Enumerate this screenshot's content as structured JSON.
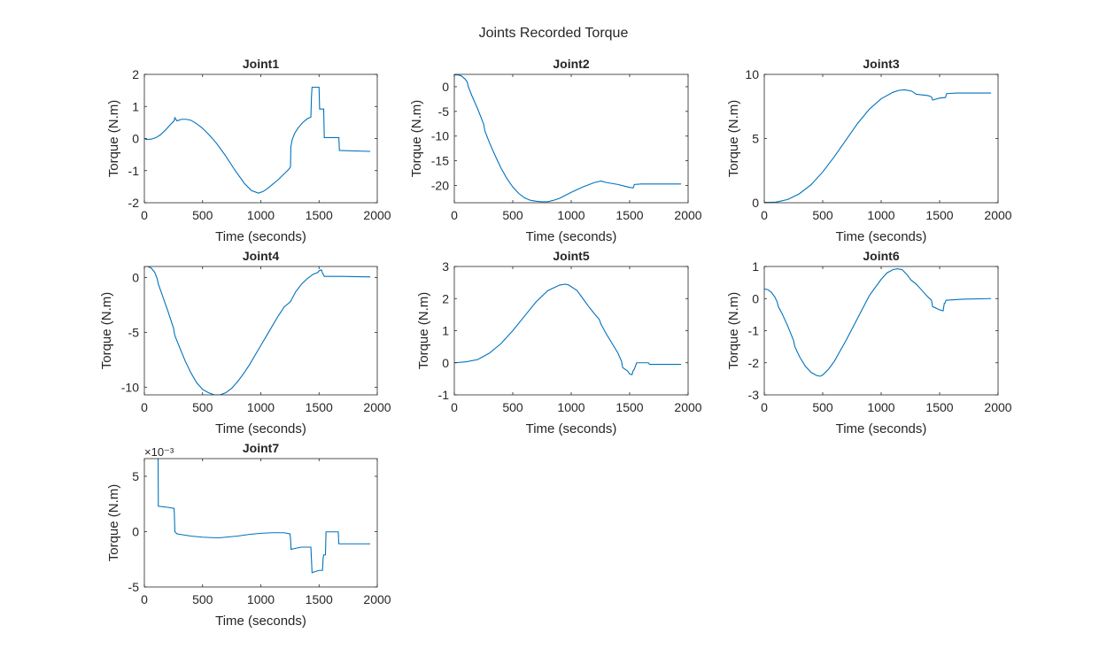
{
  "figure": {
    "title": "Joints Recorded Torque",
    "colors": {
      "line": "#0072BD",
      "axis": "#262626",
      "background": "#ffffff"
    }
  },
  "chart_data": [
    {
      "type": "line",
      "title": "Joint1",
      "xlabel": "Time (seconds)",
      "ylabel": "Torque (N.m)",
      "xlim": [
        0,
        2000
      ],
      "ylim": [
        -2,
        2
      ],
      "xticks": [
        0,
        500,
        1000,
        1500,
        2000
      ],
      "xtick_labels": [
        "0",
        "500",
        "1000",
        "1500",
        "2000"
      ],
      "yticks": [
        -2,
        -1,
        0,
        1,
        2
      ],
      "ytick_labels": [
        "-2",
        "-1",
        "0",
        "1",
        "2"
      ],
      "grid": false,
      "series": [
        {
          "x": [
            0,
            20,
            60,
            100,
            140,
            180,
            220,
            255,
            262,
            280,
            320,
            360,
            400,
            450,
            500,
            560,
            620,
            700,
            780,
            860,
            920,
            980,
            1020,
            1060,
            1100,
            1150,
            1200,
            1240,
            1255,
            1258,
            1270,
            1290,
            1320,
            1360,
            1400,
            1430,
            1435,
            1440,
            1500,
            1505,
            1530,
            1540,
            1545,
            1670,
            1675,
            1940
          ],
          "y": [
            0,
            -0.03,
            -0.02,
            0.03,
            0.12,
            0.26,
            0.42,
            0.55,
            0.65,
            0.55,
            0.6,
            0.6,
            0.57,
            0.46,
            0.32,
            0.1,
            -0.15,
            -0.55,
            -1.0,
            -1.4,
            -1.62,
            -1.7,
            -1.65,
            -1.55,
            -1.43,
            -1.28,
            -1.1,
            -0.96,
            -0.88,
            -0.25,
            -0.03,
            0.16,
            0.33,
            0.5,
            0.62,
            0.67,
            1.3,
            1.6,
            1.6,
            0.92,
            0.92,
            0.92,
            0.03,
            0.03,
            -0.37,
            -0.4
          ]
        }
      ]
    },
    {
      "type": "line",
      "title": "Joint2",
      "xlabel": "Time (seconds)",
      "ylabel": "Torque (N.m)",
      "xlim": [
        0,
        2000
      ],
      "ylim": [
        -23.5,
        2.5
      ],
      "xticks": [
        0,
        500,
        1000,
        1500,
        2000
      ],
      "xtick_labels": [
        "0",
        "500",
        "1000",
        "1500",
        "2000"
      ],
      "yticks": [
        -20,
        -15,
        -10,
        -5,
        0
      ],
      "ytick_labels": [
        "-20",
        "-15",
        "-10",
        "-5",
        "0"
      ],
      "grid": false,
      "series": [
        {
          "x": [
            0,
            30,
            60,
            90,
            110,
            120,
            150,
            200,
            250,
            262,
            300,
            350,
            400,
            450,
            500,
            550,
            600,
            650,
            700,
            750,
            800,
            850,
            900,
            950,
            1000,
            1100,
            1200,
            1255,
            1300,
            1350,
            1400,
            1450,
            1500,
            1530,
            1540,
            1600,
            1700,
            1800,
            1940
          ],
          "y": [
            2.4,
            2.4,
            2.2,
            1.6,
            1.0,
            0,
            -1.8,
            -4.5,
            -7.5,
            -9.0,
            -11.3,
            -14.0,
            -16.5,
            -18.6,
            -20.3,
            -21.6,
            -22.5,
            -23.0,
            -23.2,
            -23.3,
            -23.3,
            -23.0,
            -22.6,
            -22.0,
            -21.4,
            -20.3,
            -19.4,
            -19.1,
            -19.4,
            -19.6,
            -19.8,
            -20.1,
            -20.4,
            -20.5,
            -19.8,
            -19.7,
            -19.7,
            -19.7,
            -19.7
          ]
        }
      ]
    },
    {
      "type": "line",
      "title": "Joint3",
      "xlabel": "Time (seconds)",
      "ylabel": "Torque (N.m)",
      "xlim": [
        0,
        2000
      ],
      "ylim": [
        0,
        10
      ],
      "xticks": [
        0,
        500,
        1000,
        1500,
        2000
      ],
      "xtick_labels": [
        "0",
        "500",
        "1000",
        "1500",
        "2000"
      ],
      "yticks": [
        0,
        5,
        10
      ],
      "ytick_labels": [
        "0",
        "5",
        "10"
      ],
      "grid": false,
      "series": [
        {
          "x": [
            0,
            100,
            200,
            300,
            400,
            500,
            600,
            700,
            800,
            900,
            1000,
            1100,
            1150,
            1200,
            1260,
            1300,
            1400,
            1430,
            1440,
            1500,
            1550,
            1560,
            1650,
            1800,
            1940
          ],
          "y": [
            0.02,
            0.05,
            0.25,
            0.7,
            1.4,
            2.4,
            3.6,
            4.9,
            6.2,
            7.3,
            8.1,
            8.6,
            8.75,
            8.8,
            8.7,
            8.45,
            8.35,
            8.25,
            8.0,
            8.15,
            8.2,
            8.5,
            8.55,
            8.55,
            8.55
          ]
        }
      ]
    },
    {
      "type": "line",
      "title": "Joint4",
      "xlabel": "Time (seconds)",
      "ylabel": "Torque (N.m)",
      "xlim": [
        0,
        2000
      ],
      "ylim": [
        -10.7,
        1.0
      ],
      "xticks": [
        0,
        500,
        1000,
        1500,
        2000
      ],
      "xtick_labels": [
        "0",
        "500",
        "1000",
        "1500",
        "2000"
      ],
      "yticks": [
        -10,
        -5,
        0
      ],
      "ytick_labels": [
        "-10",
        "-5",
        "0"
      ],
      "grid": false,
      "series": [
        {
          "x": [
            0,
            30,
            60,
            90,
            110,
            120,
            150,
            200,
            250,
            262,
            300,
            350,
            400,
            450,
            500,
            550,
            600,
            650,
            700,
            750,
            800,
            850,
            900,
            950,
            1000,
            1050,
            1100,
            1150,
            1200,
            1255,
            1300,
            1350,
            1400,
            1450,
            1490,
            1500,
            1520,
            1530,
            1545,
            1560,
            1700,
            1940
          ],
          "y": [
            1.0,
            1.0,
            0.85,
            0.45,
            -0.1,
            -0.6,
            -1.5,
            -3.0,
            -4.6,
            -5.3,
            -6.3,
            -7.6,
            -8.7,
            -9.6,
            -10.2,
            -10.5,
            -10.7,
            -10.7,
            -10.5,
            -10.1,
            -9.5,
            -8.8,
            -8.0,
            -7.1,
            -6.2,
            -5.3,
            -4.4,
            -3.5,
            -2.7,
            -2.2,
            -1.3,
            -0.6,
            -0.1,
            0.3,
            0.45,
            0.6,
            0.7,
            0.4,
            0.1,
            0.1,
            0.1,
            0.05
          ]
        }
      ]
    },
    {
      "type": "line",
      "title": "Joint5",
      "xlabel": "Time (seconds)",
      "ylabel": "Torque (N.m)",
      "xlim": [
        0,
        2000
      ],
      "ylim": [
        -1,
        3
      ],
      "xticks": [
        0,
        500,
        1000,
        1500,
        2000
      ],
      "xtick_labels": [
        "0",
        "500",
        "1000",
        "1500",
        "2000"
      ],
      "yticks": [
        -1,
        0,
        1,
        2,
        3
      ],
      "ytick_labels": [
        "-1",
        "0",
        "1",
        "2",
        "3"
      ],
      "grid": false,
      "series": [
        {
          "x": [
            0,
            100,
            200,
            300,
            400,
            500,
            600,
            700,
            800,
            900,
            950,
            980,
            1050,
            1100,
            1150,
            1200,
            1240,
            1255,
            1300,
            1350,
            1400,
            1430,
            1440,
            1480,
            1500,
            1520,
            1530,
            1540,
            1560,
            1660,
            1670,
            1940
          ],
          "y": [
            0.0,
            0.03,
            0.1,
            0.3,
            0.6,
            1.0,
            1.45,
            1.9,
            2.25,
            2.42,
            2.45,
            2.42,
            2.25,
            2.0,
            1.75,
            1.52,
            1.35,
            1.2,
            0.9,
            0.6,
            0.3,
            0.05,
            -0.15,
            -0.25,
            -0.35,
            -0.37,
            -0.25,
            -0.2,
            0.0,
            0.0,
            -0.05,
            -0.05
          ]
        }
      ]
    },
    {
      "type": "line",
      "title": "Joint6",
      "xlabel": "Time (seconds)",
      "ylabel": "Torque (N.m)",
      "xlim": [
        0,
        2000
      ],
      "ylim": [
        -3,
        1
      ],
      "xticks": [
        0,
        500,
        1000,
        1500,
        2000
      ],
      "xtick_labels": [
        "0",
        "500",
        "1000",
        "1500",
        "2000"
      ],
      "yticks": [
        -3,
        -2,
        -1,
        0,
        1
      ],
      "ytick_labels": [
        "-3",
        "-2",
        "-1",
        "0",
        "1"
      ],
      "grid": false,
      "series": [
        {
          "x": [
            0,
            30,
            60,
            90,
            110,
            120,
            150,
            200,
            250,
            262,
            300,
            350,
            400,
            450,
            480,
            500,
            550,
            600,
            700,
            800,
            900,
            1000,
            1050,
            1100,
            1140,
            1180,
            1220,
            1255,
            1300,
            1350,
            1400,
            1430,
            1440,
            1500,
            1530,
            1540,
            1545,
            1555,
            1565,
            1700,
            1940
          ],
          "y": [
            0.3,
            0.28,
            0.2,
            0.05,
            -0.1,
            -0.25,
            -0.45,
            -0.85,
            -1.3,
            -1.5,
            -1.8,
            -2.1,
            -2.3,
            -2.4,
            -2.42,
            -2.38,
            -2.2,
            -1.95,
            -1.3,
            -0.6,
            0.1,
            0.6,
            0.8,
            0.9,
            0.93,
            0.9,
            0.75,
            0.58,
            0.45,
            0.25,
            0.05,
            -0.05,
            -0.25,
            -0.35,
            -0.38,
            -0.15,
            -0.15,
            -0.05,
            -0.05,
            -0.02,
            0.0
          ]
        }
      ]
    },
    {
      "type": "line",
      "title": "Joint7",
      "xlabel": "Time (seconds)",
      "ylabel": "Torque (N.m)",
      "exponent_label": "×10⁻³",
      "xlim": [
        0,
        2000
      ],
      "ylim": [
        -0.005,
        0.0066
      ],
      "xticks": [
        0,
        500,
        1000,
        1500,
        2000
      ],
      "xtick_labels": [
        "0",
        "500",
        "1000",
        "1500",
        "2000"
      ],
      "yticks": [
        -0.005,
        0,
        0.005
      ],
      "ytick_labels": [
        "-5",
        "0",
        "5"
      ],
      "grid": false,
      "series": [
        {
          "x": [
            100,
            118,
            120,
            200,
            255,
            258,
            262,
            280,
            400,
            500,
            600,
            650,
            700,
            800,
            900,
            1000,
            1100,
            1150,
            1200,
            1250,
            1255,
            1260,
            1300,
            1350,
            1430,
            1440,
            1500,
            1510,
            1530,
            1535,
            1540,
            1555,
            1560,
            1665,
            1670,
            1940
          ],
          "y": [
            0.0066,
            0.0066,
            0.0023,
            0.0022,
            0.0021,
            0.0015,
            0.0,
            -0.0002,
            -0.0004,
            -0.0005,
            -0.00055,
            -0.00055,
            -0.0005,
            -0.0004,
            -0.00025,
            -0.00015,
            -0.0001,
            -0.0001,
            -0.0001,
            -0.0002,
            -0.0006,
            -0.0016,
            -0.0015,
            -0.0014,
            -0.0014,
            -0.0037,
            -0.0035,
            -0.0035,
            -0.0035,
            -0.0024,
            -0.0021,
            -0.0021,
            -2e-05,
            -2e-05,
            -0.0011,
            -0.0011
          ]
        }
      ]
    }
  ]
}
